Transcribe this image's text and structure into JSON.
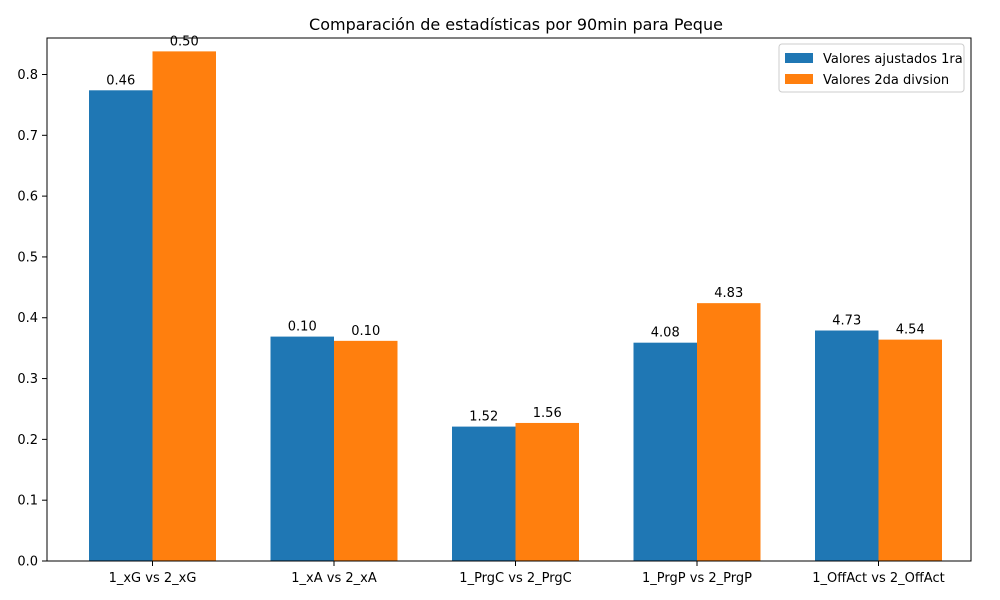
{
  "chart_data": {
    "type": "bar",
    "title": "Comparación de estadísticas por 90min para Peque",
    "xlabel": "",
    "ylabel": "",
    "categories": [
      "1_xG vs 2_xG",
      "1_xA vs 2_xA",
      "1_PrgC vs 2_PrgC",
      "1_PrgP vs 2_PrgP",
      "1_OffAct vs 2_OffAct"
    ],
    "ylim": [
      0,
      0.86
    ],
    "yticks": [
      0.0,
      0.1,
      0.2,
      0.3,
      0.4,
      0.5,
      0.6,
      0.7,
      0.8
    ],
    "yticklabels": [
      "0.0",
      "0.1",
      "0.2",
      "0.3",
      "0.4",
      "0.5",
      "0.6",
      "0.7",
      "0.8"
    ],
    "grid": false,
    "legend_position": "top-right",
    "series": [
      {
        "name": "Valores ajustados 1ra",
        "color": "#1f77b4",
        "values": [
          0.774,
          0.369,
          0.221,
          0.359,
          0.379
        ],
        "labels": [
          "0.46",
          "0.10",
          "1.52",
          "4.08",
          "4.73"
        ]
      },
      {
        "name": "Valores 2da divsion",
        "color": "#ff7f0e",
        "values": [
          0.838,
          0.362,
          0.227,
          0.424,
          0.364
        ],
        "labels": [
          "0.50",
          "0.10",
          "1.56",
          "4.83",
          "4.54"
        ]
      }
    ]
  }
}
